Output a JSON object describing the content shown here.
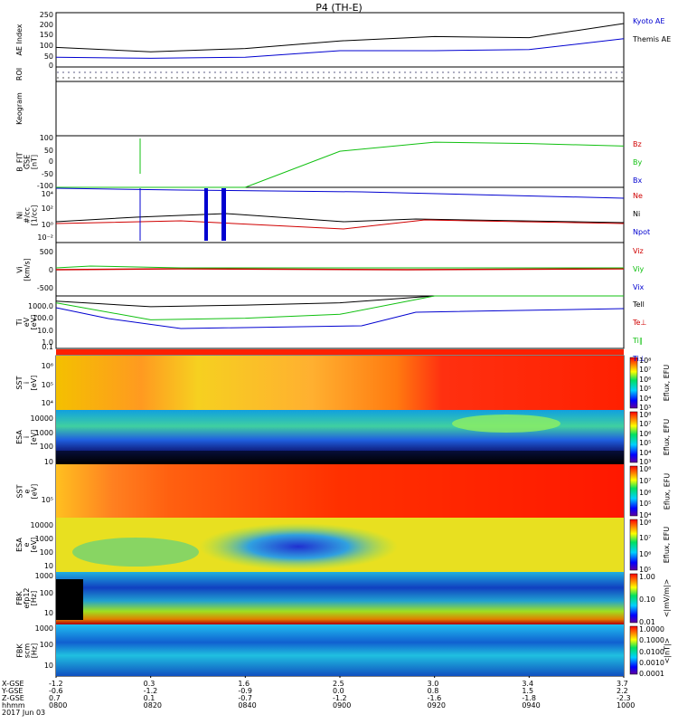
{
  "title": "P4 (TH-E)",
  "palette": {
    "black": "#000000",
    "blue": "#0000d0",
    "red": "#d00000",
    "green": "#10c010"
  },
  "panels": [
    {
      "id": "ae",
      "ylabel": "AE Index",
      "yticks": [
        "250",
        "200",
        "150",
        "100",
        "50",
        "0"
      ],
      "labels": [
        {
          "text": "Kyoto AE",
          "color": "#0000d0"
        },
        {
          "text": "Themis AE",
          "color": "#000000"
        }
      ]
    },
    {
      "id": "roi",
      "ylabel": "ROI",
      "yticks": [],
      "labels": []
    },
    {
      "id": "keogram",
      "ylabel": "Keogram",
      "yticks": [],
      "labels": []
    },
    {
      "id": "bfield",
      "ylabel": "B_FIT\nGSE\n[nT]",
      "yticks": [
        "100",
        "50",
        "0",
        "-50",
        "-100"
      ],
      "labels": [
        {
          "text": "Bz",
          "color": "#d00000"
        },
        {
          "text": "By",
          "color": "#10c010"
        },
        {
          "text": "Bx",
          "color": "#0000d0"
        }
      ]
    },
    {
      "id": "density",
      "ylabel": "Ni\n#/cc\n[1/cc]",
      "yticks": [
        "10⁴",
        "10²",
        "10⁰",
        "10⁻²"
      ],
      "labels": [
        {
          "text": "Ne",
          "color": "#d00000"
        },
        {
          "text": "Ni",
          "color": "#000000"
        },
        {
          "text": "Npot",
          "color": "#0000d0"
        }
      ]
    },
    {
      "id": "velocity",
      "ylabel": "Vi\n[km/s]",
      "yticks": [
        "500",
        "0",
        "-500"
      ],
      "labels": [
        {
          "text": "Viz",
          "color": "#d00000"
        },
        {
          "text": "Viy",
          "color": "#10c010"
        },
        {
          "text": "Vix",
          "color": "#0000d0"
        }
      ]
    },
    {
      "id": "temperature",
      "ylabel": "Ti\neV\n[eV]",
      "yticks": [
        "1000.0",
        "100.0",
        "10.0",
        "1.0",
        "0.1"
      ],
      "labels": [
        {
          "text": "Tell",
          "color": "#000000"
        },
        {
          "text": "Te⊥",
          "color": "#d00000"
        },
        {
          "text": "Ti∥",
          "color": "#10c010"
        },
        {
          "text": "Ti⊥",
          "color": "#0000d0"
        }
      ]
    },
    {
      "id": "sst_i",
      "ylabel": "SST\ni\n[eV]",
      "yticks": [
        "10⁶",
        "10⁵",
        "10⁴"
      ],
      "labels": []
    },
    {
      "id": "esa_i",
      "ylabel": "ESA\ni\n[eV]",
      "yticks": [
        "10000",
        "1000",
        "100",
        "10"
      ],
      "labels": []
    },
    {
      "id": "sst_e",
      "ylabel": "SST\ne\n[eV]",
      "yticks": [
        "10⁵"
      ],
      "labels": []
    },
    {
      "id": "esa_e",
      "ylabel": "ESA\ne\n[eV]",
      "yticks": [
        "10000",
        "1000",
        "100",
        "10"
      ],
      "labels": []
    },
    {
      "id": "fbk_e12",
      "ylabel": "FBK\nefp12\n[Hz]",
      "yticks": [
        "1000",
        "100",
        "10"
      ],
      "labels": []
    },
    {
      "id": "fbk_scm",
      "ylabel": "FBK\nscm\n[Hz]",
      "yticks": [
        "1000",
        "100",
        "10"
      ],
      "labels": []
    }
  ],
  "colorbars": [
    {
      "panel": "sst_i",
      "label": "Eflux, EFU",
      "ticks": [
        "10⁸",
        "10⁷",
        "10⁶",
        "10⁵",
        "10⁴",
        "10³"
      ]
    },
    {
      "panel": "esa_i",
      "label": "Eflux, EFU",
      "ticks": [
        "10⁸",
        "10⁷",
        "10⁶",
        "10⁵",
        "10⁴",
        "10³"
      ]
    },
    {
      "panel": "sst_e",
      "label": "Eflux, EFU",
      "ticks": [
        "10⁸",
        "10⁷",
        "10⁶",
        "10⁵",
        "10⁴"
      ]
    },
    {
      "panel": "esa_e",
      "label": "Eflux, EFU",
      "ticks": [
        "10⁸",
        "10⁷",
        "10⁶",
        "10⁵"
      ]
    },
    {
      "panel": "fbk_e12",
      "label": "<|mV/m|>",
      "ticks": [
        "1.00",
        "0.10",
        "0.01"
      ]
    },
    {
      "panel": "fbk_scm",
      "label": "<|nT|>",
      "ticks": [
        "1.0000",
        "0.1000",
        "0.0100",
        "0.0010",
        "0.0001"
      ]
    }
  ],
  "footer": {
    "row_labels": [
      "X-GSE",
      "Y-GSE",
      "Z-GSE",
      "hhmm",
      "2017 Jun 03"
    ],
    "columns": [
      {
        "x": "-1.2",
        "y": "-0.6",
        "z": "0.7",
        "t": "0800"
      },
      {
        "x": "0.3",
        "y": "-1.2",
        "z": "0.1",
        "t": "0820"
      },
      {
        "x": "1.6",
        "y": "-0.9",
        "z": "-0.7",
        "t": "0840"
      },
      {
        "x": "2.5",
        "y": "0.0",
        "z": "-1.2",
        "t": "0900"
      },
      {
        "x": "3.0",
        "y": "0.8",
        "z": "-1.6",
        "t": "0920"
      },
      {
        "x": "3.4",
        "y": "1.5",
        "z": "-1.8",
        "t": "0940"
      },
      {
        "x": "3.7",
        "y": "2.2",
        "z": "-2.3",
        "t": "1000"
      }
    ]
  },
  "chart_data": {
    "type": "line",
    "title": "P4 (TH-E)",
    "date": "2017 Jun 03",
    "x": [
      "0800",
      "0820",
      "0840",
      "0900",
      "0920",
      "0940",
      "1000"
    ],
    "series": [
      {
        "name": "Kyoto AE",
        "values": [
          45,
          40,
          45,
          75,
          75,
          80,
          130
        ]
      },
      {
        "name": "Themis AE",
        "values": [
          90,
          70,
          85,
          120,
          140,
          135,
          200
        ]
      },
      {
        "name": "By",
        "values": [
          -100,
          -100,
          -100,
          40,
          75,
          70,
          60
        ]
      },
      {
        "name": "Tell",
        "values": [
          400,
          150,
          200,
          300,
          1000,
          1000,
          1000
        ]
      },
      {
        "name": "Ti∥",
        "values": [
          300,
          15,
          20,
          40,
          1500,
          1500,
          1500
        ]
      }
    ],
    "ylim": {
      "ae": [
        0,
        250
      ],
      "bfield": [
        -100,
        100
      ],
      "temperature": [
        0.1,
        1000
      ]
    },
    "legend": "right"
  }
}
